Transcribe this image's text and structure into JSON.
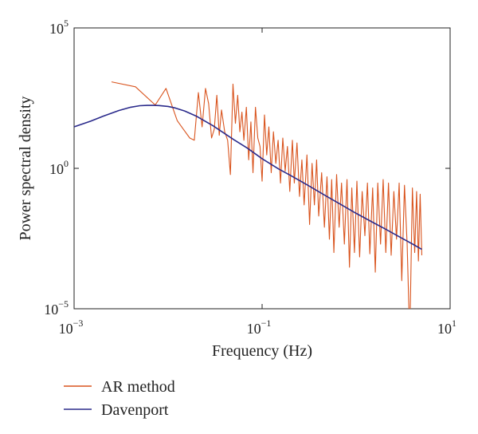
{
  "chart_data": {
    "type": "line",
    "title": "",
    "xlabel": "Frequency (Hz)",
    "ylabel": "Power spectral density",
    "x_scale": "log",
    "y_scale": "log",
    "xlim": [
      0.001,
      10
    ],
    "ylim": [
      1e-05,
      100000
    ],
    "x_ticks": [
      {
        "base": "10",
        "exp": "−3",
        "value": 0.001
      },
      {
        "base": "10",
        "exp": "−1",
        "value": 0.1
      },
      {
        "base": "10",
        "exp": "1",
        "value": 10
      }
    ],
    "y_ticks": [
      {
        "base": "10",
        "exp": "−5",
        "value": 1e-05
      },
      {
        "base": "10",
        "exp": "0",
        "value": 1
      },
      {
        "base": "10",
        "exp": "5",
        "value": 100000
      }
    ],
    "grid": false,
    "legend_position": "bottom-left",
    "series": [
      {
        "name": "AR method",
        "color": "#d9541e",
        "x": [
          0.0025,
          0.0045,
          0.0073,
          0.0095,
          0.0125,
          0.0145,
          0.017,
          0.019,
          0.021,
          0.023,
          0.025,
          0.027,
          0.029,
          0.031,
          0.033,
          0.035,
          0.037,
          0.04,
          0.043,
          0.046,
          0.049,
          0.052,
          0.055,
          0.058,
          0.061,
          0.064,
          0.068,
          0.072,
          0.076,
          0.08,
          0.085,
          0.09,
          0.095,
          0.1,
          0.106,
          0.112,
          0.118,
          0.125,
          0.132,
          0.14,
          0.148,
          0.157,
          0.166,
          0.176,
          0.186,
          0.197,
          0.21,
          0.22,
          0.235,
          0.25,
          0.265,
          0.28,
          0.3,
          0.32,
          0.34,
          0.36,
          0.38,
          0.4,
          0.43,
          0.46,
          0.49,
          0.52,
          0.55,
          0.58,
          0.62,
          0.66,
          0.7,
          0.75,
          0.8,
          0.85,
          0.9,
          0.96,
          1.02,
          1.09,
          1.16,
          1.24,
          1.32,
          1.4,
          1.5,
          1.6,
          1.7,
          1.82,
          1.94,
          2.07,
          2.21,
          2.36,
          2.52,
          2.69,
          2.87,
          3.06,
          3.27,
          3.49,
          3.72,
          3.97,
          4.2,
          4.4,
          4.6,
          4.8,
          5.0
        ],
        "y": [
          1200,
          800,
          180,
          700,
          50,
          25,
          12,
          10,
          500,
          30,
          700,
          200,
          12,
          25,
          400,
          15,
          120,
          20,
          10,
          0.6,
          1000,
          40,
          400,
          20,
          100,
          10,
          150,
          2,
          45,
          0.7,
          150,
          12,
          6,
          0.35,
          80,
          3,
          30,
          0.7,
          20,
          1.5,
          10,
          0.3,
          12,
          0.8,
          6,
          0.15,
          10,
          0.3,
          8,
          0.1,
          2,
          0.05,
          3,
          0.01,
          1.5,
          0.05,
          2,
          0.02,
          0.7,
          0.008,
          0.5,
          0.003,
          0.4,
          0.001,
          0.6,
          0.008,
          0.3,
          0.002,
          0.4,
          0.0003,
          0.2,
          0.001,
          0.35,
          0.0007,
          0.15,
          0.004,
          0.3,
          0.0009,
          0.2,
          0.0002,
          0.3,
          0.002,
          0.4,
          0.001,
          0.3,
          0.0008,
          0.15,
          0.003,
          0.3,
          0.0001,
          0.25,
          0.002,
          8e-07,
          0.2,
          0.001,
          0.15,
          0.0005,
          0.12,
          0.0008
        ]
      },
      {
        "name": "Davenport",
        "color": "#2b2b8c",
        "x": [
          0.001,
          0.0015,
          0.002,
          0.003,
          0.004,
          0.005,
          0.006,
          0.007,
          0.008,
          0.01,
          0.012,
          0.015,
          0.02,
          0.03,
          0.05,
          0.07,
          0.1,
          0.15,
          0.2,
          0.3,
          0.5,
          0.7,
          1,
          1.5,
          2,
          3,
          4,
          5
        ],
        "y": [
          30,
          48,
          70,
          115,
          150,
          170,
          175,
          175,
          172,
          160,
          140,
          110,
          72,
          33,
          10.5,
          5.2,
          2.2,
          0.95,
          0.56,
          0.26,
          0.095,
          0.05,
          0.025,
          0.012,
          0.0072,
          0.0034,
          0.002,
          0.0013
        ]
      }
    ]
  }
}
